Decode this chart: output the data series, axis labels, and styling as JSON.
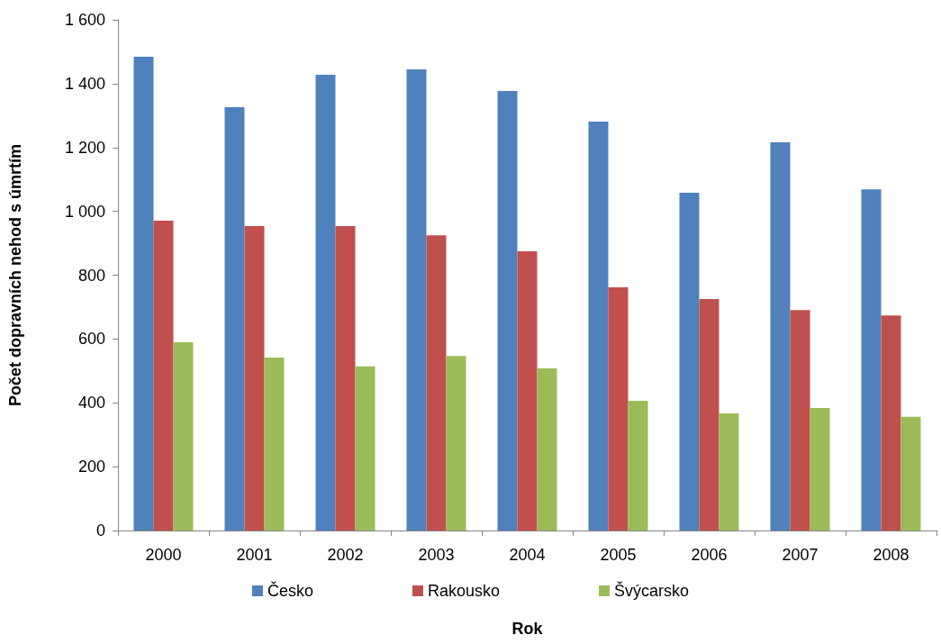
{
  "chart_data": {
    "type": "bar",
    "xlabel": "Rok",
    "ylabel": "Počet dopravních nehod s úmrtím",
    "categories": [
      "2000",
      "2001",
      "2002",
      "2003",
      "2004",
      "2005",
      "2006",
      "2007",
      "2008"
    ],
    "series": [
      {
        "name": "Česko",
        "color": "#4f81bd",
        "values": [
          1484,
          1326,
          1428,
          1445,
          1377,
          1281,
          1058,
          1216,
          1069
        ]
      },
      {
        "name": "Rakousko",
        "color": "#c0504d",
        "values": [
          971,
          954,
          954,
          925,
          875,
          762,
          725,
          691,
          674
        ]
      },
      {
        "name": "Švýcarsko",
        "color": "#9bbb59",
        "values": [
          590,
          542,
          514,
          547,
          508,
          406,
          367,
          384,
          356
        ]
      }
    ],
    "ylim": [
      0,
      1600
    ],
    "yticks": [
      0,
      200,
      400,
      600,
      800,
      {
        "value": 1000,
        "label": "1 000"
      },
      {
        "value": 1200,
        "label": "1 200"
      },
      {
        "value": 1400,
        "label": "1 400"
      },
      {
        "value": 1600,
        "label": "1 600"
      }
    ],
    "grid": false,
    "legend": "bottom"
  }
}
